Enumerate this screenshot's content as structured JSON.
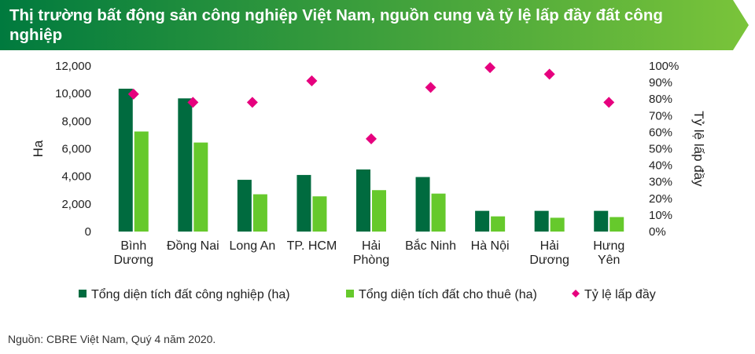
{
  "header": {
    "title": "Thị trường bất động sản công nghiệp Việt Nam, nguồn cung và tỷ lệ lấp đầy đất công nghiệp"
  },
  "chart_data": {
    "type": "bar",
    "title": "Thị trường bất động sản công nghiệp Việt Nam, nguồn cung và tỷ lệ lấp đầy đất công nghiệp",
    "categories": [
      [
        "Bình",
        "Dương"
      ],
      [
        "Đồng Nai"
      ],
      [
        "Long An"
      ],
      [
        "TP. HCM"
      ],
      [
        "Hải",
        "Phòng"
      ],
      [
        "Bắc Ninh"
      ],
      [
        "Hà Nội"
      ],
      [
        "Hải",
        "Dương"
      ],
      [
        "Hưng",
        "Yên"
      ]
    ],
    "ylabel": "Ha",
    "y2label": "Tỷ lệ lấp đầy",
    "ylim": [
      0,
      12000
    ],
    "y_ticks": [
      "0",
      "2,000",
      "4,000",
      "6,000",
      "8,000",
      "10,000",
      "12,000"
    ],
    "y2lim": [
      0,
      100
    ],
    "y2_ticks": [
      "0%",
      "10%",
      "20%",
      "30%",
      "40%",
      "50%",
      "60%",
      "70%",
      "80%",
      "90%",
      "100%"
    ],
    "series": [
      {
        "name": "Tổng diện tích đất công nghiệp (ha)",
        "kind": "bar",
        "axis": "left",
        "color": "#006b3f",
        "values": [
          10350,
          9650,
          3750,
          4100,
          4500,
          3950,
          1500,
          1500,
          1500
        ]
      },
      {
        "name": "Tổng diện tích đất cho thuê (ha)",
        "kind": "bar",
        "axis": "left",
        "color": "#66c92c",
        "values": [
          7250,
          6450,
          2700,
          2550,
          3000,
          2750,
          1100,
          1000,
          1050
        ]
      },
      {
        "name": "Tỷ lệ lấp đầy",
        "kind": "marker",
        "marker": "diamond",
        "axis": "right",
        "color": "#e6007e",
        "values": [
          83,
          78,
          78,
          91,
          56,
          87,
          99,
          95,
          78
        ]
      }
    ],
    "legend_position": "bottom",
    "grid": false
  },
  "footer": {
    "source": "Nguồn: CBRE Việt Nam, Quý 4 năm 2020."
  },
  "colors": {
    "banner_start": "#007a3e",
    "banner_end": "#7ac43a"
  }
}
